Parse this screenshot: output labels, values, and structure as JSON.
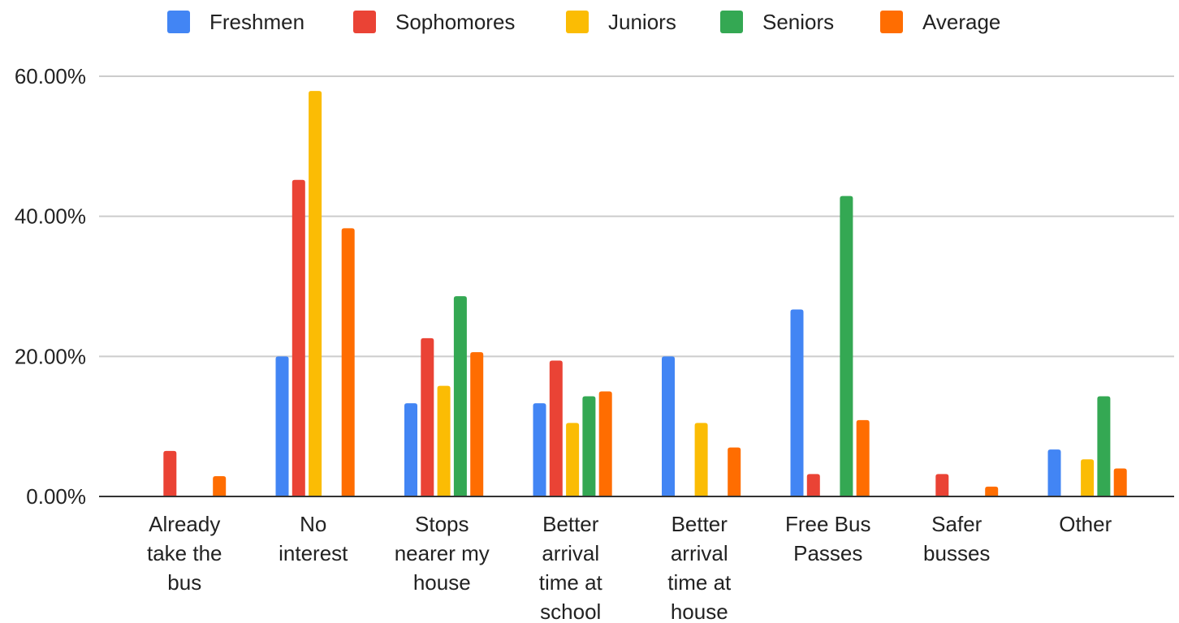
{
  "chart_data": {
    "type": "bar",
    "title": "",
    "xlabel": "",
    "ylabel": "",
    "ylim": [
      0,
      60
    ],
    "y_ticks": [
      "0.00%",
      "20.00%",
      "40.00%",
      "60.00%"
    ],
    "y_tick_values": [
      0,
      20,
      40,
      60
    ],
    "grid": true,
    "legend_position": "top",
    "categories": [
      [
        "Already",
        "take the",
        "bus"
      ],
      [
        "No",
        "interest"
      ],
      [
        "Stops",
        "nearer my",
        "house"
      ],
      [
        "Better",
        "arrival",
        "time at",
        "school"
      ],
      [
        "Better",
        "arrival",
        "time at",
        "house"
      ],
      [
        "Free Bus",
        "Passes"
      ],
      [
        "Safer",
        "busses"
      ],
      [
        "Other"
      ]
    ],
    "series": [
      {
        "name": "Freshmen",
        "color": "#4285F4",
        "values": [
          0,
          20,
          13.3,
          13.3,
          20,
          26.7,
          0,
          6.7
        ]
      },
      {
        "name": "Sophomores",
        "color": "#EA4335",
        "values": [
          6.5,
          45.2,
          22.6,
          19.4,
          0,
          3.2,
          3.2,
          0
        ]
      },
      {
        "name": "Juniors",
        "color": "#FBBC04",
        "values": [
          0,
          57.9,
          15.8,
          10.5,
          10.5,
          0,
          0,
          5.3
        ]
      },
      {
        "name": "Seniors",
        "color": "#34A853",
        "values": [
          0,
          0,
          28.6,
          14.3,
          0,
          42.9,
          0,
          14.3
        ]
      },
      {
        "name": "Average",
        "color": "#FF6D01",
        "values": [
          2.9,
          38.3,
          20.6,
          15.0,
          7.0,
          10.9,
          1.4,
          4.0
        ]
      }
    ]
  }
}
